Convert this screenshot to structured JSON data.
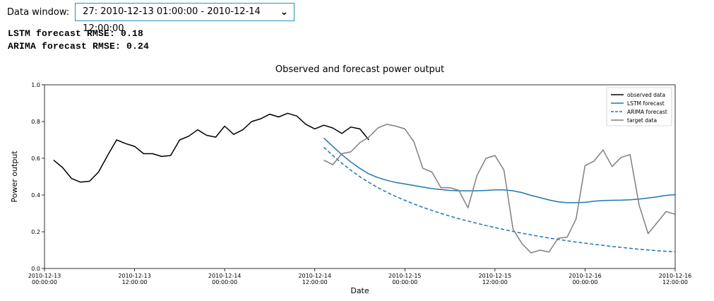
{
  "header": {
    "data_window_label": "Data window:",
    "selected_window": "27:  2010-12-13 01:00:00 - 2010-12-14 12:00:00",
    "chevron_icon": "chevron-down-icon"
  },
  "metrics": {
    "lstm_rmse": "LSTM forecast RMSE: 0.18",
    "arima_rmse": "ARIMA forecast RMSE: 0.24"
  },
  "chart_data": {
    "type": "line",
    "title": "Observed and forecast power output",
    "xlabel": "Date",
    "ylabel": "Power output",
    "xlim": [
      0,
      70
    ],
    "ylim": [
      0,
      1.0
    ],
    "yticks": [
      0.0,
      0.2,
      0.4,
      0.6,
      0.8,
      1.0
    ],
    "ytick_labels": [
      "0.0",
      "0.2",
      "0.4",
      "0.6",
      "0.8",
      "1.0"
    ],
    "xticks": [
      0,
      10,
      20,
      30,
      40,
      50,
      60,
      70
    ],
    "xtick_labels": [
      [
        "2010-12-13",
        "00:00:00"
      ],
      [
        "2010-12-13",
        "12:00:00"
      ],
      [
        "2010-12-14",
        "00:00:00"
      ],
      [
        "2010-12-14",
        "12:00:00"
      ],
      [
        "2010-12-15",
        "00:00:00"
      ],
      [
        "2010-12-15",
        "12:00:00"
      ],
      [
        "2010-12-16",
        "00:00:00"
      ],
      [
        "2010-12-16",
        "12:00:00"
      ]
    ],
    "grid": false,
    "legend_position": "top-right",
    "series": [
      {
        "name": "observed data",
        "color": "#000000",
        "dash": "solid",
        "x": [
          1,
          2,
          3,
          4,
          5,
          6,
          7,
          8,
          9,
          10,
          11,
          12,
          13,
          14,
          15,
          16,
          17,
          18,
          19,
          20,
          21,
          22,
          23,
          24,
          25,
          26,
          27,
          28,
          29,
          30,
          31,
          32,
          33,
          34,
          35,
          36
        ],
        "y": [
          0.59,
          0.55,
          0.49,
          0.47,
          0.475,
          0.525,
          0.615,
          0.7,
          0.68,
          0.665,
          0.625,
          0.625,
          0.61,
          0.615,
          0.7,
          0.72,
          0.755,
          0.725,
          0.715,
          0.775,
          0.73,
          0.755,
          0.8,
          0.815,
          0.84,
          0.825,
          0.845,
          0.83,
          0.785,
          0.76,
          0.78,
          0.765,
          0.735,
          0.77,
          0.76,
          0.7
        ]
      },
      {
        "name": "LSTM forecast",
        "color": "#1f77b4",
        "dash": "solid",
        "x": [
          31,
          32,
          33,
          34,
          35,
          36,
          37,
          38,
          39,
          40,
          41,
          42,
          43,
          44,
          45,
          46,
          47,
          48,
          49,
          50,
          51,
          52,
          53,
          54,
          55,
          56,
          57,
          58,
          59,
          60,
          61,
          62,
          63,
          64,
          65,
          66,
          67,
          68,
          69,
          70
        ],
        "y": [
          0.71,
          0.665,
          0.62,
          0.58,
          0.545,
          0.515,
          0.495,
          0.48,
          0.468,
          0.46,
          0.452,
          0.443,
          0.435,
          0.43,
          0.425,
          0.423,
          0.423,
          0.423,
          0.425,
          0.428,
          0.428,
          0.423,
          0.413,
          0.398,
          0.386,
          0.373,
          0.363,
          0.358,
          0.359,
          0.36,
          0.366,
          0.37,
          0.371,
          0.372,
          0.374,
          0.378,
          0.384,
          0.39,
          0.398,
          0.402
        ]
      },
      {
        "name": "ARIMA forecast",
        "color": "#1f77b4",
        "dash": "dashed",
        "x": [
          31,
          32,
          33,
          34,
          35,
          36,
          37,
          38,
          39,
          40,
          41,
          42,
          43,
          44,
          45,
          46,
          47,
          48,
          49,
          50,
          51,
          52,
          53,
          54,
          55,
          56,
          57,
          58,
          59,
          60,
          61,
          62,
          63,
          64,
          65,
          66,
          67,
          68,
          69,
          70
        ],
        "y": [
          0.66,
          0.615,
          0.573,
          0.535,
          0.5,
          0.469,
          0.44,
          0.415,
          0.392,
          0.371,
          0.351,
          0.333,
          0.316,
          0.3,
          0.285,
          0.271,
          0.258,
          0.246,
          0.234,
          0.223,
          0.212,
          0.202,
          0.192,
          0.183,
          0.174,
          0.166,
          0.158,
          0.151,
          0.144,
          0.138,
          0.132,
          0.126,
          0.12,
          0.115,
          0.11,
          0.105,
          0.101,
          0.097,
          0.094,
          0.091
        ]
      },
      {
        "name": "target data",
        "color": "#7f7f7f",
        "dash": "solid",
        "x": [
          31,
          32,
          33,
          34,
          35,
          36,
          37,
          38,
          39,
          40,
          41,
          42,
          43,
          44,
          45,
          46,
          47,
          48,
          49,
          50,
          51,
          52,
          53,
          54,
          55,
          56,
          57,
          58,
          59,
          60,
          61,
          62,
          63,
          64,
          65,
          66,
          67,
          68,
          69,
          70
        ],
        "y": [
          0.59,
          0.565,
          0.625,
          0.635,
          0.685,
          0.715,
          0.765,
          0.785,
          0.775,
          0.76,
          0.69,
          0.545,
          0.525,
          0.44,
          0.44,
          0.425,
          0.33,
          0.505,
          0.6,
          0.615,
          0.535,
          0.215,
          0.135,
          0.085,
          0.1,
          0.09,
          0.165,
          0.17,
          0.27,
          0.56,
          0.585,
          0.645,
          0.555,
          0.605,
          0.62,
          0.345,
          0.19,
          0.25,
          0.31,
          0.295
        ]
      }
    ]
  }
}
